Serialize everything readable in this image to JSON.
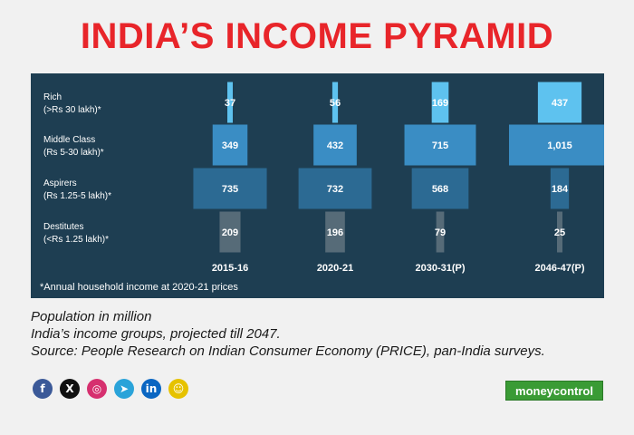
{
  "header": {
    "title": "INDIA’S INCOME PYRAMID"
  },
  "chart_data": {
    "type": "bar",
    "categories": [
      "2015-16",
      "2020-21",
      "2030-31(P)",
      "2046-47(P)"
    ],
    "groups": [
      {
        "label_line1": "Rich",
        "label_line2": "(>Rs 30 lakh)*",
        "values": [
          37,
          56,
          169,
          437
        ],
        "display": [
          "37",
          "56",
          "169",
          "437"
        ],
        "color": "#5ec2ef"
      },
      {
        "label_line1": "Middle Class",
        "label_line2": "(Rs 5-30 lakh)*",
        "values": [
          349,
          432,
          715,
          1015
        ],
        "display": [
          "349",
          "432",
          "715",
          "1,015"
        ],
        "color": "#3a8dc4"
      },
      {
        "label_line1": "Aspirers",
        "label_line2": "(Rs 1.25-5 lakh)*",
        "values": [
          735,
          732,
          568,
          184
        ],
        "display": [
          "735",
          "732",
          "568",
          "184"
        ],
        "color": "#2c6a93"
      },
      {
        "label_line1": "Destitutes",
        "label_line2": "(<Rs 1.25 lakh)*",
        "values": [
          209,
          196,
          79,
          25
        ],
        "display": [
          "209",
          "196",
          "79",
          "25"
        ],
        "color": "#566b78"
      }
    ],
    "footnote": "*Annual household income at 2020-21 prices"
  },
  "caption": {
    "line1": "Population in million",
    "line2": "India’s income groups, projected till 2047.",
    "line3": "Source: People Research on Indian Consumer Economy (PRICE), pan-India surveys."
  },
  "social": [
    {
      "name": "facebook-icon",
      "glyph": "f",
      "color": "#3b5998"
    },
    {
      "name": "x-icon",
      "glyph": "X",
      "color": "#111111"
    },
    {
      "name": "instagram-icon",
      "glyph": "◎",
      "color": "#d6306f"
    },
    {
      "name": "telegram-icon",
      "glyph": "➤",
      "color": "#2aa3d9"
    },
    {
      "name": "linkedin-icon",
      "glyph": "in",
      "color": "#0a66c2"
    },
    {
      "name": "snapchat-icon",
      "glyph": "☺",
      "color": "#e6c200"
    }
  ],
  "brand": {
    "logo_text": "moneycontrol"
  }
}
